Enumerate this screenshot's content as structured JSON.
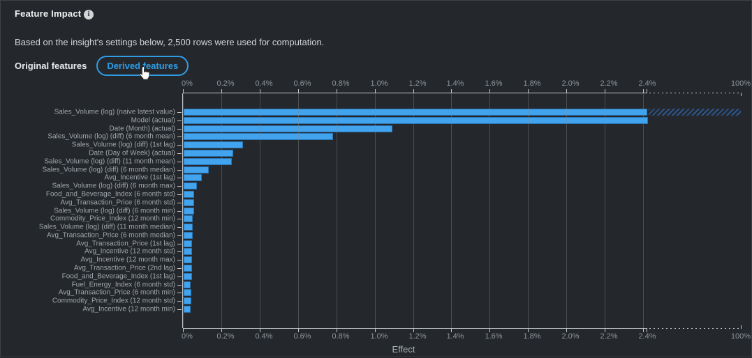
{
  "header": {
    "title": "Feature Impact",
    "info_icon": "info-icon",
    "subtitle": "Based on the insight's settings below, 2,500 rows were used for computation."
  },
  "tabs": [
    {
      "label": "Original features",
      "active": false
    },
    {
      "label": "Derived features",
      "active": true
    }
  ],
  "colors": {
    "bar": "#42a4ee",
    "bar_border": "#2b73af",
    "hatch": "#2e558c",
    "accent_tab": "#2f9ce6",
    "background": "#24282c"
  },
  "chart_data": {
    "type": "bar",
    "orientation": "horizontal",
    "title": "",
    "xlabel": "Effect",
    "ylabel": "",
    "x_ticks": [
      "0%",
      "0.2%",
      "0.4%",
      "0.6%",
      "0.8%",
      "1.0%",
      "1.2%",
      "1.4%",
      "1.6%",
      "1.8%",
      "2.0%",
      "2.2%",
      "2.4%"
    ],
    "x_axis_break": {
      "after_pct": 2.4,
      "end_label": "100%"
    },
    "grid": true,
    "legend": "none",
    "features": [
      {
        "label": "Sales_Volume (log) (naive latest value)",
        "value_pct": 100
      },
      {
        "label": "Model (actual)",
        "value_pct": 2.42
      },
      {
        "label": "Date (Month) (actual)",
        "value_pct": 1.09
      },
      {
        "label": "Sales_Volume (log) (diff) (6 month mean)",
        "value_pct": 0.78
      },
      {
        "label": "Sales_Volume (log) (diff) (1st lag)",
        "value_pct": 0.31
      },
      {
        "label": "Date (Day of Week) (actual)",
        "value_pct": 0.26
      },
      {
        "label": "Sales_Volume (log) (diff) (11 month mean)",
        "value_pct": 0.25
      },
      {
        "label": "Sales_Volume (log) (diff) (6 month median)",
        "value_pct": 0.13
      },
      {
        "label": "Avg_Incentive (1st lag)",
        "value_pct": 0.093
      },
      {
        "label": "Sales_Volume (log) (diff) (6 month max)",
        "value_pct": 0.069
      },
      {
        "label": "Food_and_Beverage_Index (6 month std)",
        "value_pct": 0.056
      },
      {
        "label": "Avg_Transaction_Price (6 month std)",
        "value_pct": 0.055
      },
      {
        "label": "Sales_Volume (log) (diff) (6 month min)",
        "value_pct": 0.053
      },
      {
        "label": "Commodity_Price_Index (12 month min)",
        "value_pct": 0.047
      },
      {
        "label": "Sales_Volume (log) (diff) (11 month median)",
        "value_pct": 0.047
      },
      {
        "label": "Avg_Transaction_Price (6 month median)",
        "value_pct": 0.046
      },
      {
        "label": "Avg_Transaction_Price (1st lag)",
        "value_pct": 0.042
      },
      {
        "label": "Avg_Incentive (12 month std)",
        "value_pct": 0.042
      },
      {
        "label": "Avg_Incentive (12 month max)",
        "value_pct": 0.042
      },
      {
        "label": "Avg_Transaction_Price (2nd lag)",
        "value_pct": 0.042
      },
      {
        "label": "Food_and_Beverage_Index (1st lag)",
        "value_pct": 0.044
      },
      {
        "label": "Fuel_Energy_Index (6 month std)",
        "value_pct": 0.037
      },
      {
        "label": "Avg_Transaction_Price (6 month min)",
        "value_pct": 0.04
      },
      {
        "label": "Commodity_Price_Index (12 month std)",
        "value_pct": 0.04
      },
      {
        "label": "Avg_Incentive (12 month min)",
        "value_pct": 0.037
      }
    ]
  }
}
